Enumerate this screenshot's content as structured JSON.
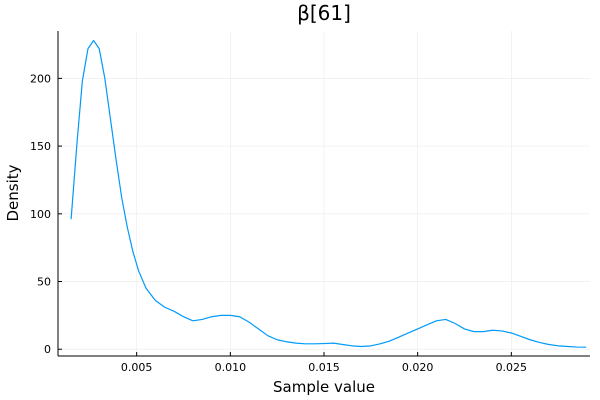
{
  "chart_data": {
    "type": "line",
    "title": "β[61]",
    "xlabel": "Sample value",
    "ylabel": "Density",
    "xlim": [
      0.0008,
      0.0292
    ],
    "ylim": [
      -5,
      235
    ],
    "xticks": [
      0.005,
      0.01,
      0.015,
      0.02,
      0.025
    ],
    "xtick_labels": [
      "0.005",
      "0.010",
      "0.015",
      "0.020",
      "0.025"
    ],
    "yticks": [
      0,
      50,
      100,
      150,
      200
    ],
    "ytick_labels": [
      "0",
      "50",
      "100",
      "150",
      "200"
    ],
    "grid": true,
    "legend": "none",
    "series": [
      {
        "color": "#009AFA",
        "x": [
          0.0015,
          0.0018,
          0.0021,
          0.0024,
          0.0027,
          0.003,
          0.0033,
          0.0036,
          0.0039,
          0.0042,
          0.0045,
          0.0048,
          0.0051,
          0.0055,
          0.006,
          0.0065,
          0.007,
          0.0075,
          0.008,
          0.0085,
          0.009,
          0.0095,
          0.01,
          0.0105,
          0.011,
          0.0115,
          0.012,
          0.0125,
          0.013,
          0.0135,
          0.014,
          0.0145,
          0.015,
          0.0155,
          0.016,
          0.0165,
          0.017,
          0.0175,
          0.018,
          0.0185,
          0.019,
          0.0195,
          0.02,
          0.0205,
          0.021,
          0.0215,
          0.022,
          0.0225,
          0.023,
          0.0235,
          0.024,
          0.0245,
          0.025,
          0.0255,
          0.026,
          0.0265,
          0.027,
          0.0275,
          0.028,
          0.0285,
          0.029
        ],
        "y": [
          96,
          150,
          198,
          222,
          228,
          222,
          200,
          170,
          140,
          112,
          90,
          72,
          58,
          45,
          36,
          31,
          28,
          24,
          21,
          22,
          24,
          25,
          25,
          24,
          20,
          15,
          10,
          7,
          5.5,
          4.5,
          4,
          4,
          4.2,
          4.5,
          3.5,
          2.5,
          2,
          2.5,
          4,
          6,
          9,
          12,
          15,
          18,
          21,
          22,
          19,
          15,
          13,
          13,
          14,
          13.5,
          12,
          9.5,
          7,
          5,
          3.5,
          2.5,
          2,
          1.6,
          1.5
        ]
      }
    ]
  }
}
